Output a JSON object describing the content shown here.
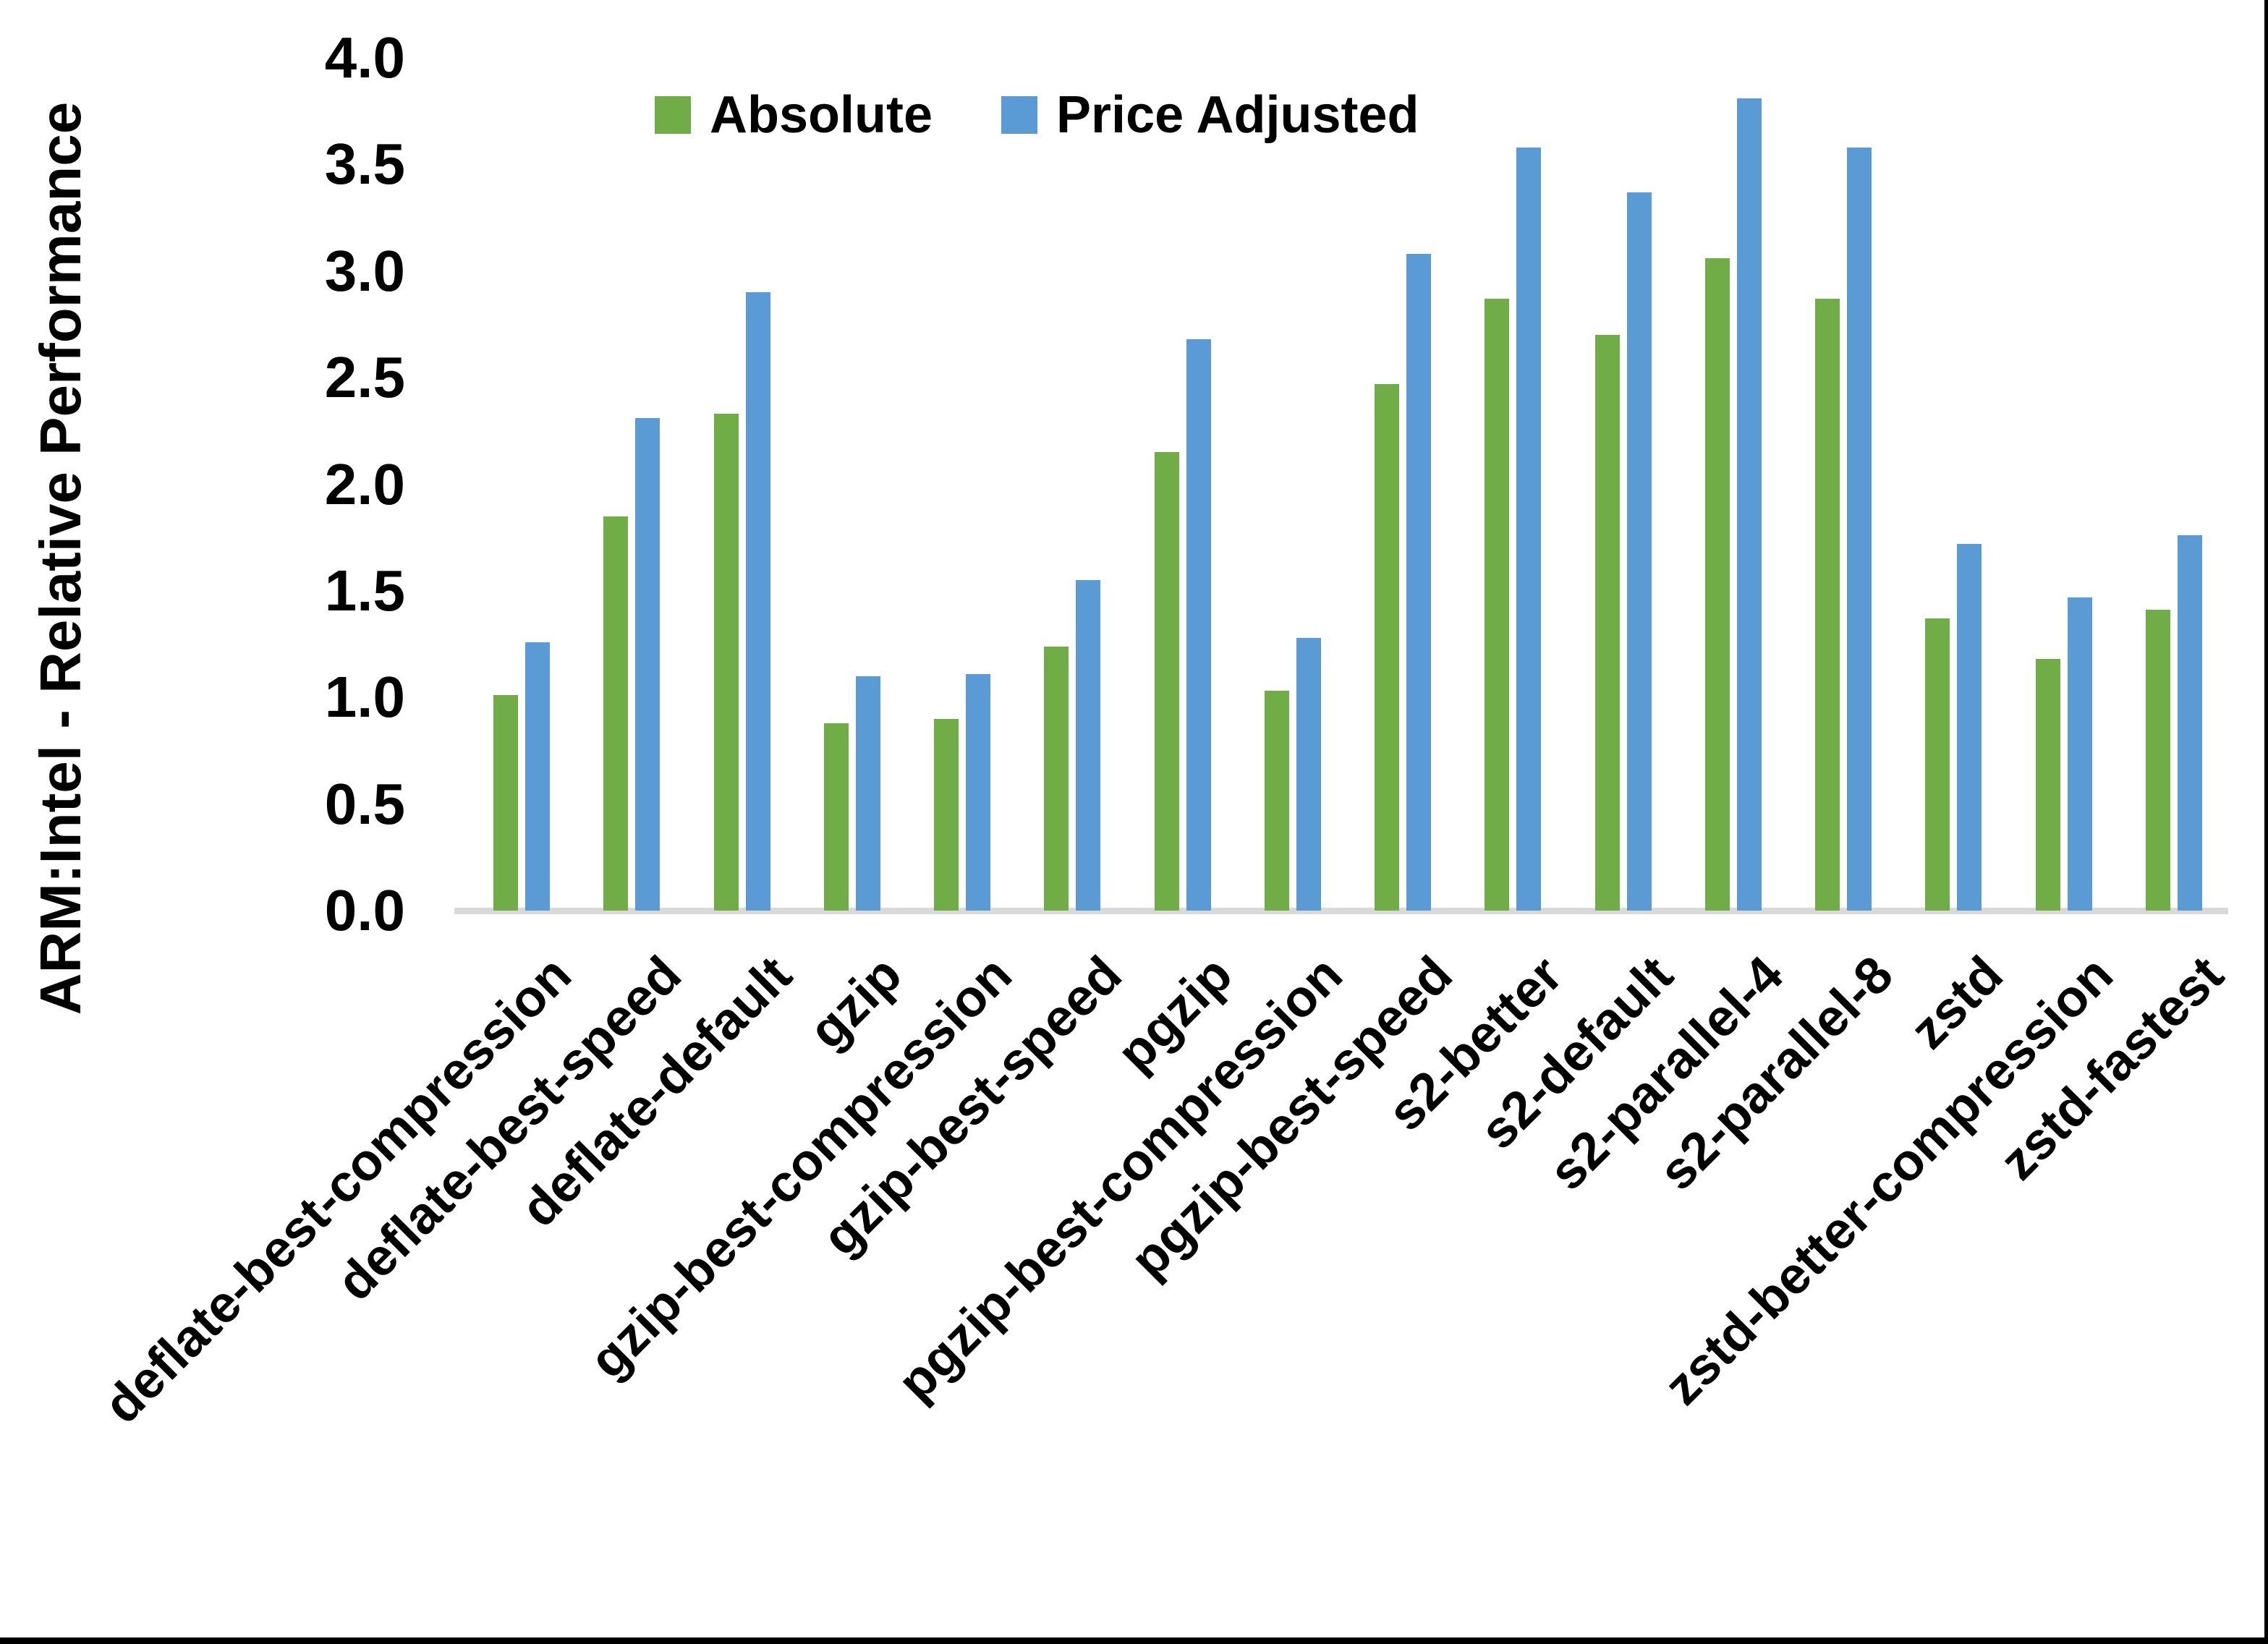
{
  "chart_data": {
    "type": "bar",
    "title": "",
    "ylabel": "ARM:Intel - Relative Performance",
    "xlabel": "",
    "categories": [
      "deflate-best-compression",
      "deflate-best-speed",
      "deflate-default",
      "gzip",
      "gzip-best-compression",
      "gzip-best-speed",
      "pgzip",
      "pgzip-best-compression",
      "pgzip-best-speed",
      "s2-better",
      "s2-default",
      "s2-parallel-4",
      "s2-parallel-8",
      "zstd",
      "zstd-better-compression",
      "zstd-fastest"
    ],
    "series": [
      {
        "name": "Absolute",
        "color": "#70AD47",
        "values": [
          1.01,
          1.85,
          2.33,
          0.88,
          0.9,
          1.24,
          2.15,
          1.03,
          2.47,
          2.87,
          2.7,
          3.06,
          2.87,
          1.37,
          1.18,
          1.41
        ]
      },
      {
        "name": "Price Adjusted",
        "color": "#5B9BD5",
        "values": [
          1.26,
          2.31,
          2.9,
          1.1,
          1.11,
          1.55,
          2.68,
          1.28,
          3.08,
          3.58,
          3.37,
          3.81,
          3.58,
          1.72,
          1.47,
          1.76
        ]
      }
    ],
    "ylim": [
      0.0,
      4.0
    ],
    "ytick_step": 0.5,
    "ytick_labels": [
      "0.0",
      "0.5",
      "1.0",
      "1.5",
      "2.0",
      "2.5",
      "3.0",
      "3.5",
      "4.0"
    ],
    "legend_position": "top-center",
    "grid": false,
    "axis_line_color": "#D9D9D9",
    "background": "#FFFFFF",
    "frame": {
      "right_border_color": "#000000",
      "bottom_border_color": "#000000"
    }
  }
}
